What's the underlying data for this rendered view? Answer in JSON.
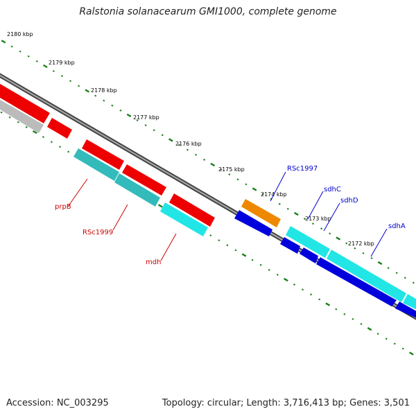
{
  "title": "Ralstonia solanacearum GMI1000, complete genome",
  "footer": {
    "accession": "Accession: NC_003295",
    "info": "Topology: circular; Length: 3,716,413 bp; Genes: 3,501"
  },
  "ticks": [
    "2180 kbp",
    "2179 kbp",
    "2178 kbp",
    "2177 kbp",
    "2176 kbp",
    "2175 kbp",
    "2174 kbp",
    "2173 kbp",
    "2172 kbp"
  ],
  "gene_labels": [
    {
      "name": "prpB",
      "color": "#cc0000"
    },
    {
      "name": "RSc1999",
      "color": "#cc0000"
    },
    {
      "name": "mdh",
      "color": "#cc0000"
    },
    {
      "name": "RSc1997",
      "color": "#0000cc"
    },
    {
      "name": "sdhC",
      "color": "#0000cc"
    },
    {
      "name": "sdhD",
      "color": "#0000cc"
    },
    {
      "name": "sdhA",
      "color": "#0000cc"
    }
  ],
  "colors": {
    "backbone": "#888888",
    "tick": "#1a7f1a",
    "red_gene": "#ee0000",
    "teal_gene": "#33bbbb",
    "cyan_gene": "#22e6e6",
    "blue_gene": "#0000dd",
    "orange_gene": "#ee8800",
    "gray_gene": "#bbbbbb"
  }
}
